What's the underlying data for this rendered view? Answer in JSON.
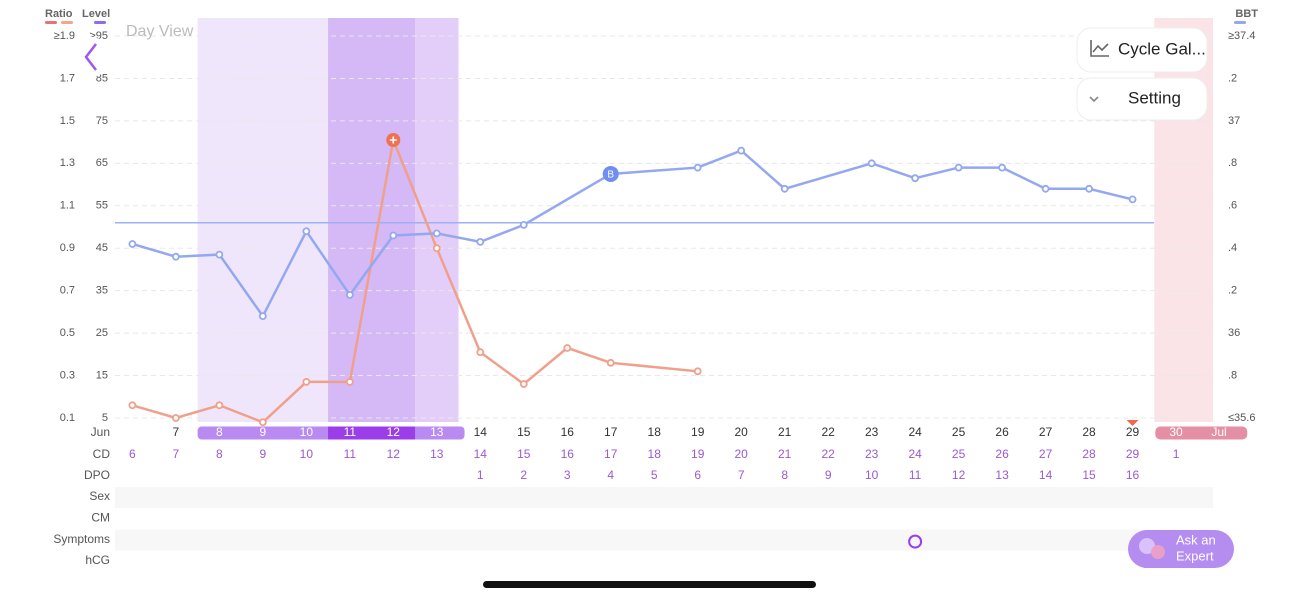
{
  "header": {
    "ratio_label": "Ratio",
    "level_label": "Level",
    "bbt_label": "BBT",
    "view": "Day View"
  },
  "buttons": {
    "cycle_gallery": "Cycle Gal...",
    "setting": "Setting",
    "ask_expert": [
      "Ask an",
      "Expert"
    ]
  },
  "chart_data": {
    "type": "line",
    "xlim": [
      5.6,
      30.85
    ],
    "ylim": [
      0.1,
      1.9
    ],
    "yticks": [
      {
        "value": 1.9,
        "label": "≥1.9"
      },
      1.7,
      1.5,
      1.3,
      1.1,
      0.9,
      0.7,
      0.5,
      0.3,
      0.1
    ],
    "levellim": [
      5,
      95
    ],
    "levelticks": [
      {
        "value": 95,
        "label": ">95"
      },
      85,
      75,
      65,
      55,
      45,
      35,
      25,
      15,
      5
    ],
    "y2lim": [
      35.6,
      37.4
    ],
    "y2ticks": [
      {
        "value": 37.4,
        "label": "≥37.4"
      },
      {
        "value": 37.2,
        "label": ".2"
      },
      37,
      {
        "value": 36.8,
        "label": ".8"
      },
      {
        "value": 36.6,
        "label": ".6"
      },
      {
        "value": 36.4,
        "label": ".4"
      },
      {
        "value": 36.2,
        "label": ".2"
      },
      36,
      {
        "value": 35.8,
        "label": ".8"
      },
      {
        "value": 35.6,
        "label": "≤35.6"
      }
    ],
    "grid": true,
    "fertile_window": [
      8,
      13
    ],
    "peak_days": [
      11,
      12
    ],
    "period_start": 30,
    "coverline": 36.52,
    "series": [
      {
        "name": "Ratio",
        "color": "#f0a08a",
        "x": [
          6,
          7,
          8,
          9,
          10,
          11,
          12,
          13,
          14,
          15,
          16,
          17,
          19
        ],
        "values": [
          0.16,
          0.1,
          0.16,
          0.08,
          0.27,
          0.27,
          1.41,
          0.9,
          0.41,
          0.26,
          0.43,
          0.36,
          0.32
        ],
        "peak_marker": 12
      },
      {
        "name": "BBT",
        "color": "#93a8f0",
        "axis": "y2",
        "x": [
          6,
          7,
          8,
          9,
          10,
          11,
          12,
          13,
          14,
          15,
          17,
          19,
          20,
          21,
          23,
          24,
          25,
          26,
          27,
          28,
          29
        ],
        "values": [
          36.42,
          36.36,
          36.37,
          36.08,
          36.48,
          36.18,
          36.46,
          36.47,
          36.43,
          36.51,
          36.75,
          36.78,
          36.86,
          36.68,
          36.8,
          36.73,
          36.78,
          36.78,
          36.68,
          36.68,
          36.63
        ],
        "marker": {
          "day": 17,
          "label": "B"
        }
      }
    ]
  },
  "date_row": {
    "month": "Jun",
    "days": [
      7,
      8,
      9,
      10,
      11,
      12,
      13,
      14,
      15,
      16,
      17,
      18,
      19,
      20,
      21,
      22,
      23,
      24,
      25,
      26,
      27,
      28,
      29,
      30
    ],
    "next_month": "Jul"
  },
  "cd_row": {
    "label": "CD",
    "start_day": 6,
    "values": [
      6,
      7,
      8,
      9,
      10,
      11,
      12,
      13,
      14,
      15,
      16,
      17,
      18,
      19,
      20,
      21,
      22,
      23,
      24,
      25,
      26,
      27,
      28,
      29,
      1
    ]
  },
  "dpo_row": {
    "label": "DPO",
    "start_day": 14,
    "values": [
      1,
      2,
      3,
      4,
      5,
      6,
      7,
      8,
      9,
      10,
      11,
      12,
      13,
      14,
      15,
      16
    ]
  },
  "rows": [
    "Sex",
    "CM",
    "Symptoms",
    "hCG"
  ],
  "symptom_days": [
    24
  ]
}
